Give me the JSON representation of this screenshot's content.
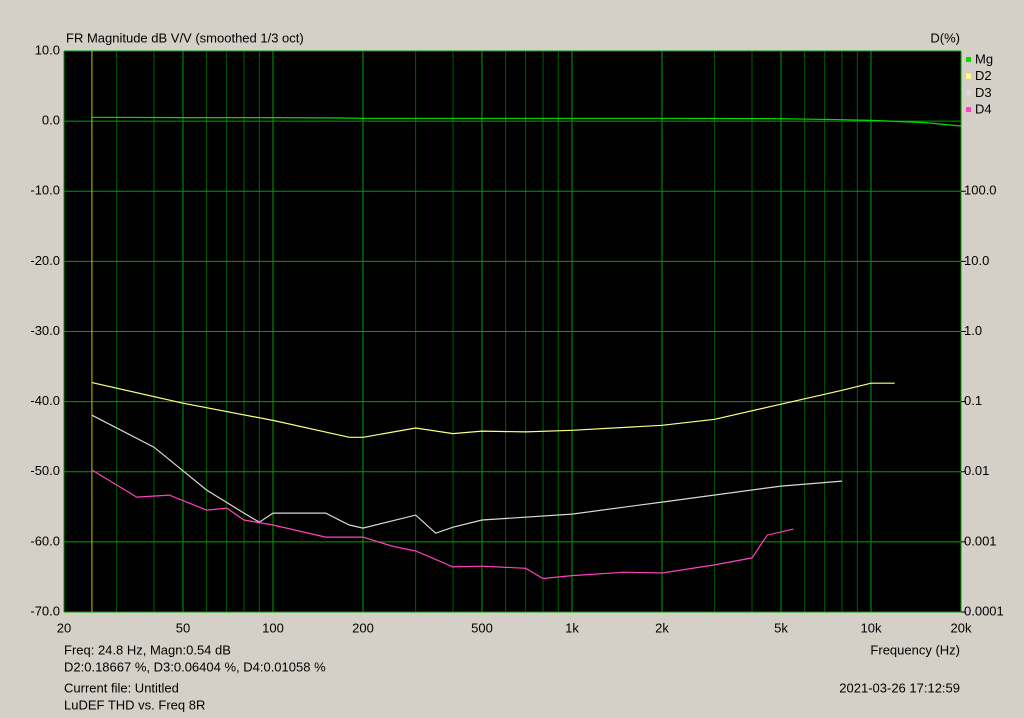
{
  "chart_data": {
    "type": "line",
    "title": "FR Magnitude dB V/V (smoothed 1/3 oct)",
    "y2_label": "D(%)",
    "x_label": "Frequency (Hz)",
    "log_x": true,
    "log_y2": true,
    "grid": true,
    "xlim": [
      20,
      20000
    ],
    "xticks": [
      20,
      50,
      100,
      200,
      500,
      {
        "value": 1000,
        "label": "1k"
      },
      {
        "value": 2000,
        "label": "2k"
      },
      {
        "value": 5000,
        "label": "5k"
      },
      {
        "value": 10000,
        "label": "10k"
      },
      {
        "value": 20000,
        "label": "20k"
      }
    ],
    "xminor": [
      30,
      40,
      60,
      70,
      80,
      90,
      300,
      400,
      600,
      700,
      800,
      900,
      3000,
      4000,
      6000,
      7000,
      8000,
      9000
    ],
    "ylim": [
      -70,
      10
    ],
    "yticks": [
      {
        "value": 10,
        "label": "10.0"
      },
      {
        "value": 0,
        "label": "0.0"
      },
      {
        "value": -10,
        "label": "-10.0"
      },
      {
        "value": -20,
        "label": "-20.0"
      },
      {
        "value": -30,
        "label": "-30.0"
      },
      {
        "value": -40,
        "label": "-40.0"
      },
      {
        "value": -50,
        "label": "-50.0"
      },
      {
        "value": -60,
        "label": "-60.0"
      },
      {
        "value": -70,
        "label": "-70.0"
      }
    ],
    "y2lim": [
      0.0001,
      10000
    ],
    "y2ticks": [
      {
        "value": 100,
        "label": "100.0"
      },
      {
        "value": 10,
        "label": "10.0"
      },
      {
        "value": 1,
        "label": "1.0"
      },
      0.1,
      0.01,
      0.001,
      0.0001
    ],
    "cursor": 24.8,
    "series": [
      {
        "name": "Mg",
        "color": "#00e000",
        "axis": "y",
        "x": [
          24.8,
          50,
          100,
          170,
          200,
          500,
          1000,
          2000,
          5000,
          8000,
          10000,
          15000,
          20000
        ],
        "values": [
          0.54,
          0.5,
          0.5,
          0.45,
          0.4,
          0.4,
          0.4,
          0.4,
          0.35,
          0.2,
          0.1,
          -0.2,
          -0.7
        ]
      },
      {
        "name": "D2",
        "color": "#ffff80",
        "axis": "y2",
        "x": [
          24.8,
          50,
          100,
          180,
          200,
          300,
          400,
          500,
          700,
          1000,
          2000,
          3000,
          5000,
          8000,
          10000,
          12000
        ],
        "values": [
          0.18667,
          0.095,
          0.054,
          0.031,
          0.031,
          0.042,
          0.035,
          0.038,
          0.037,
          0.039,
          0.046,
          0.056,
          0.092,
          0.145,
          0.183,
          0.183
        ]
      },
      {
        "name": "D3",
        "color": "#d8d8d8",
        "axis": "y2",
        "x": [
          24.8,
          40,
          60,
          80,
          90,
          100,
          150,
          180,
          200,
          300,
          350,
          400,
          500,
          1000,
          2000,
          5000,
          8000
        ],
        "values": [
          0.06404,
          0.0224,
          0.00547,
          0.00257,
          0.00191,
          0.00257,
          0.00257,
          0.00174,
          0.00157,
          0.00241,
          0.00133,
          0.00162,
          0.00205,
          0.00249,
          0.00369,
          0.00624,
          0.00735
        ]
      },
      {
        "name": "D4",
        "color": "#ff40c0",
        "axis": "y2",
        "x": [
          24.8,
          35,
          45,
          60,
          70,
          80,
          100,
          150,
          200,
          250,
          300,
          400,
          500,
          700,
          800,
          1000,
          1500,
          2000,
          3000,
          4000,
          4500,
          5500
        ],
        "values": [
          0.01058,
          0.00435,
          0.00464,
          0.00284,
          0.00303,
          0.00205,
          0.00174,
          0.00117,
          0.00117,
          0.00087,
          0.00074,
          0.00044,
          0.00045,
          0.00042,
          0.0003,
          0.00033,
          0.00037,
          0.00036,
          0.00047,
          0.00059,
          0.00125,
          0.00152
        ]
      }
    ]
  },
  "readout": {
    "line1": "Freq: 24.8 Hz, Magn:0.54 dB",
    "line2": "D2:0.18667 %, D3:0.06404 %, D4:0.01058 %"
  },
  "footer": {
    "file": "Current file: Untitled",
    "name": "LuDEF THD vs. Freq  8R",
    "timestamp": "2021-03-26  17:12:59"
  }
}
